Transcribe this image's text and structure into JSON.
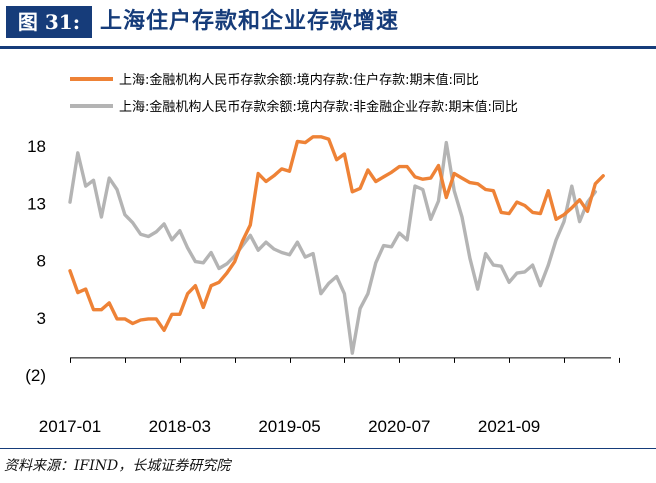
{
  "header": {
    "figure_label": "图 31:",
    "title": "上海住户存款和企业存款增速"
  },
  "source": "资料来源：IFIND，长城证券研究院",
  "colors": {
    "orange": "#ee8236",
    "gray": "#b4b4b4",
    "navy": "#163c7a",
    "negative": "#c00000"
  },
  "chart_data": {
    "type": "line",
    "title": "",
    "xlabel": "",
    "ylabel": "",
    "ylim": [
      -2,
      20
    ],
    "y_ticks": [
      {
        "value": 18,
        "label": "18"
      },
      {
        "value": 13,
        "label": "13"
      },
      {
        "value": 8,
        "label": "8"
      },
      {
        "value": 3,
        "label": "3"
      },
      {
        "value": -2,
        "label": "(2)"
      }
    ],
    "x_start": "2017-01",
    "x_ticks": [
      {
        "index": 0,
        "label": "2017-01"
      },
      {
        "index": 14,
        "label": "2018-03"
      },
      {
        "index": 28,
        "label": "2019-05"
      },
      {
        "index": 42,
        "label": "2020-07"
      },
      {
        "index": 56,
        "label": "2021-09"
      }
    ],
    "legend_position": "top",
    "series": [
      {
        "name": "上海:金融机构人民币存款余额:境内存款:住户存款:期末值:同比",
        "color": "#ee8236",
        "values": [
          7.1,
          5.2,
          5.5,
          3.7,
          3.7,
          4.3,
          2.9,
          2.9,
          2.5,
          2.8,
          2.9,
          2.9,
          1.9,
          3.3,
          3.3,
          5.1,
          5.8,
          3.9,
          5.8,
          6.1,
          6.9,
          7.9,
          9.7,
          11.1,
          15.6,
          14.9,
          15.4,
          16.0,
          15.8,
          18.4,
          18.3,
          18.8,
          18.8,
          18.6,
          16.8,
          17.3,
          14.0,
          14.3,
          15.9,
          14.9,
          15.3,
          15.7,
          16.2,
          16.2,
          15.3,
          15.1,
          15.2,
          16.3,
          13.5,
          15.6,
          15.2,
          14.8,
          14.7,
          14.2,
          14.1,
          12.2,
          12.1,
          13.1,
          12.8,
          12.2,
          12.1,
          14.1,
          11.6,
          12.0,
          12.6,
          13.3,
          12.3,
          14.7,
          15.4
        ]
      },
      {
        "name": "上海:金融机构人民币存款余额:境内存款:非金融企业存款:期末值:同比",
        "color": "#b4b4b4",
        "values": [
          13.1,
          17.4,
          14.5,
          15.0,
          11.8,
          15.2,
          14.2,
          12.0,
          11.3,
          10.3,
          10.1,
          10.5,
          11.2,
          9.8,
          10.6,
          9.1,
          7.9,
          7.8,
          8.7,
          7.3,
          7.7,
          8.4,
          9.3,
          10.2,
          8.9,
          9.6,
          9.0,
          8.7,
          8.5,
          9.6,
          8.3,
          8.6,
          5.1,
          6.0,
          6.6,
          5.1,
          -0.1,
          3.8,
          5.1,
          7.8,
          9.3,
          9.2,
          10.4,
          9.8,
          14.5,
          14.2,
          11.6,
          13.2,
          18.3,
          14.1,
          11.8,
          8.2,
          5.5,
          8.6,
          7.6,
          7.5,
          6.1,
          6.9,
          7.0,
          7.6,
          5.8,
          7.6,
          9.8,
          11.4,
          14.5,
          11.4,
          13.1,
          14.0
        ]
      }
    ]
  }
}
